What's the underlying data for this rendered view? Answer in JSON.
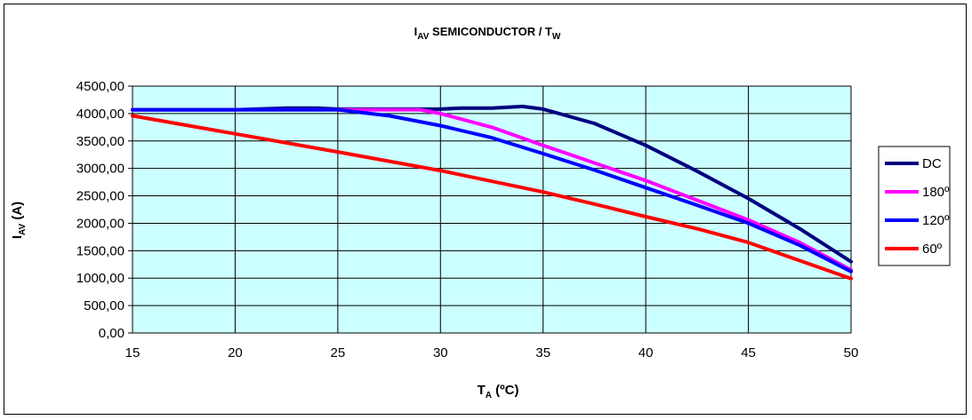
{
  "chart_data": {
    "type": "line",
    "title": {
      "main": "I",
      "sub": "AV",
      "rest": " SEMICONDUCTOR / T",
      "sub2": "W"
    },
    "xlabel": {
      "main": "T",
      "sub": "A",
      "rest": " (ºC)"
    },
    "ylabel": {
      "main": "I",
      "sub": "AV",
      "rest": " (A)"
    },
    "xlim": [
      15,
      50
    ],
    "ylim": [
      0,
      4500
    ],
    "x_ticks": [
      "15",
      "20",
      "25",
      "30",
      "35",
      "40",
      "45",
      "50"
    ],
    "y_ticks": [
      "0,00",
      "500,00",
      "1000,00",
      "1500,00",
      "2000,00",
      "2500,00",
      "3000,00",
      "3500,00",
      "4000,00",
      "4500,00"
    ],
    "grid": true,
    "plot_background": "#ccffff",
    "legend_position": "right",
    "series": [
      {
        "name": "DC",
        "color": "#000080",
        "points": [
          [
            15,
            4070
          ],
          [
            20,
            4070
          ],
          [
            22.5,
            4100
          ],
          [
            24,
            4100
          ],
          [
            25,
            4080
          ],
          [
            28,
            4080
          ],
          [
            30,
            4080
          ],
          [
            31,
            4100
          ],
          [
            32.5,
            4100
          ],
          [
            34,
            4130
          ],
          [
            35,
            4080
          ],
          [
            37.5,
            3820
          ],
          [
            40,
            3420
          ],
          [
            42.5,
            2950
          ],
          [
            45,
            2450
          ],
          [
            47.5,
            1900
          ],
          [
            50,
            1300
          ]
        ]
      },
      {
        "name": "180º",
        "color": "#ff00ff",
        "points": [
          [
            15,
            4070
          ],
          [
            20,
            4070
          ],
          [
            25,
            4070
          ],
          [
            29,
            4070
          ],
          [
            30,
            4000
          ],
          [
            31,
            3900
          ],
          [
            32.5,
            3750
          ],
          [
            35,
            3420
          ],
          [
            37.5,
            3100
          ],
          [
            40,
            2780
          ],
          [
            42.5,
            2420
          ],
          [
            45,
            2060
          ],
          [
            47.5,
            1650
          ],
          [
            50,
            1150
          ]
        ]
      },
      {
        "name": "120º",
        "color": "#0000ff",
        "points": [
          [
            15,
            4070
          ],
          [
            20,
            4070
          ],
          [
            25,
            4070
          ],
          [
            27.5,
            3960
          ],
          [
            30,
            3780
          ],
          [
            32.5,
            3560
          ],
          [
            35,
            3270
          ],
          [
            37.5,
            2970
          ],
          [
            40,
            2650
          ],
          [
            42.5,
            2330
          ],
          [
            45,
            2000
          ],
          [
            47.5,
            1600
          ],
          [
            50,
            1120
          ]
        ]
      },
      {
        "name": "60º",
        "color": "#ff0000",
        "points": [
          [
            15,
            3960
          ],
          [
            20,
            3630
          ],
          [
            25,
            3300
          ],
          [
            30,
            2960
          ],
          [
            35,
            2570
          ],
          [
            37.5,
            2350
          ],
          [
            40,
            2120
          ],
          [
            42.5,
            1900
          ],
          [
            45,
            1650
          ],
          [
            47.5,
            1320
          ],
          [
            50,
            990
          ]
        ]
      }
    ]
  }
}
